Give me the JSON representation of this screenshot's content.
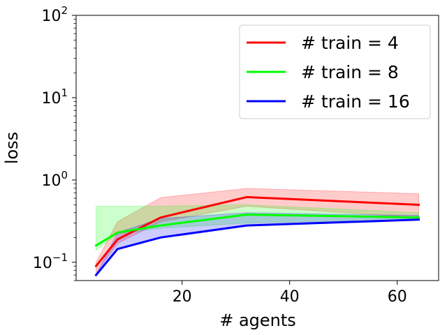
{
  "chart_data": {
    "type": "line",
    "xlabel": "# agents",
    "ylabel": "loss",
    "x": [
      4,
      8,
      16,
      32,
      64
    ],
    "xlim": [
      0.3,
      67.7
    ],
    "ylim": [
      0.06,
      100
    ],
    "yscale": "log",
    "xticks": [
      20,
      40,
      60
    ],
    "yticks": [
      {
        "value": 0.1,
        "base": "10",
        "exp": "−1"
      },
      {
        "value": 1,
        "base": "10",
        "exp": "0"
      },
      {
        "value": 10,
        "base": "10",
        "exp": "1"
      },
      {
        "value": 100,
        "base": "10",
        "exp": "2"
      }
    ],
    "grid": false,
    "legend_position": "top-right",
    "series": [
      {
        "name": "# train = 4",
        "color": "#ff0000",
        "band_color": "#ff0000",
        "values": [
          0.09,
          0.19,
          0.35,
          0.62,
          0.5
        ],
        "lower": [
          0.075,
          0.17,
          0.31,
          0.48,
          0.35
        ],
        "upper": [
          0.1,
          0.31,
          0.61,
          0.79,
          0.68
        ]
      },
      {
        "name": "# train = 8",
        "color": "#00ff00",
        "band_color": "#00ff00",
        "values": [
          0.16,
          0.23,
          0.28,
          0.38,
          0.35
        ],
        "lower": [
          0.14,
          0.22,
          0.26,
          0.3,
          0.33
        ],
        "upper": [
          0.48,
          0.48,
          0.48,
          0.5,
          0.4
        ]
      },
      {
        "name": "# train = 16",
        "color": "#0000ff",
        "band_color": "#0000ff",
        "values": [
          0.07,
          0.145,
          0.2,
          0.28,
          0.33
        ],
        "lower": [
          0.07,
          0.145,
          0.2,
          0.28,
          0.33
        ],
        "upper": [
          0.07,
          0.23,
          0.34,
          0.4,
          0.37
        ]
      }
    ]
  }
}
